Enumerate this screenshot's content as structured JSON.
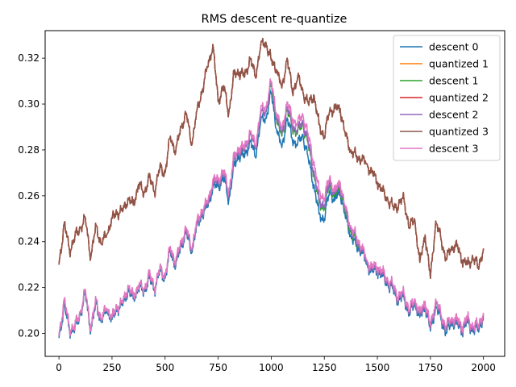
{
  "chart_data": {
    "type": "line",
    "title": "RMS descent re-quantize",
    "xlabel": "",
    "ylabel": "",
    "xlim": [
      -65,
      2100
    ],
    "ylim": [
      0.19,
      0.332
    ],
    "xticks": [
      0,
      250,
      500,
      750,
      1000,
      1250,
      1500,
      1750,
      2000
    ],
    "yticks": [
      0.2,
      0.22,
      0.24,
      0.26,
      0.28,
      0.3,
      0.32
    ],
    "ytick_labels": [
      "0.20",
      "0.22",
      "0.24",
      "0.26",
      "0.28",
      "0.30",
      "0.32"
    ],
    "legend_position": "top-right",
    "grid": false,
    "colors": {
      "descent 0": "#1f77b4",
      "quantized 1": "#ff7f0e",
      "descent 1": "#2ca02c",
      "quantized 2": "#d62728",
      "descent 2": "#9467bd",
      "quantized 3": "#8c564b",
      "descent 3": "#e377c2"
    },
    "series": [
      {
        "name": "descent 0",
        "x": [
          0,
          25,
          50,
          75,
          100,
          125,
          150,
          175,
          200,
          225,
          250,
          275,
          300,
          325,
          350,
          375,
          400,
          425,
          450,
          475,
          500,
          525,
          550,
          575,
          600,
          625,
          650,
          675,
          700,
          725,
          750,
          775,
          800,
          825,
          850,
          875,
          900,
          925,
          950,
          975,
          1000,
          1025,
          1050,
          1075,
          1100,
          1125,
          1150,
          1175,
          1200,
          1225,
          1250,
          1275,
          1300,
          1325,
          1350,
          1375,
          1400,
          1425,
          1450,
          1475,
          1500,
          1525,
          1550,
          1575,
          1600,
          1625,
          1650,
          1675,
          1700,
          1725,
          1750,
          1775,
          1800,
          1825,
          1850,
          1875,
          1900,
          1925,
          1950,
          1975,
          2000
        ],
        "y": [
          0.198,
          0.212,
          0.201,
          0.202,
          0.208,
          0.217,
          0.201,
          0.213,
          0.205,
          0.21,
          0.206,
          0.211,
          0.212,
          0.219,
          0.215,
          0.22,
          0.218,
          0.224,
          0.219,
          0.227,
          0.224,
          0.236,
          0.229,
          0.238,
          0.244,
          0.235,
          0.247,
          0.252,
          0.255,
          0.264,
          0.264,
          0.268,
          0.258,
          0.273,
          0.278,
          0.277,
          0.284,
          0.277,
          0.292,
          0.294,
          0.305,
          0.289,
          0.281,
          0.294,
          0.284,
          0.283,
          0.286,
          0.276,
          0.265,
          0.252,
          0.25,
          0.262,
          0.258,
          0.262,
          0.25,
          0.243,
          0.238,
          0.236,
          0.23,
          0.227,
          0.227,
          0.225,
          0.221,
          0.219,
          0.214,
          0.216,
          0.208,
          0.213,
          0.207,
          0.212,
          0.201,
          0.212,
          0.206,
          0.2,
          0.205,
          0.204,
          0.201,
          0.205,
          0.201,
          0.202,
          0.207
        ]
      },
      {
        "name": "quantized 1",
        "x": [
          0,
          25,
          50,
          75,
          100,
          125,
          150,
          175,
          200,
          225,
          250,
          275,
          300,
          325,
          350,
          375,
          400,
          425,
          450,
          475,
          500,
          525,
          550,
          575,
          600,
          625,
          650,
          675,
          700,
          725,
          750,
          775,
          800,
          825,
          850,
          875,
          900,
          925,
          950,
          975,
          1000,
          1025,
          1050,
          1075,
          1100,
          1125,
          1150,
          1175,
          1200,
          1225,
          1250,
          1275,
          1300,
          1325,
          1350,
          1375,
          1400,
          1425,
          1450,
          1475,
          1500,
          1525,
          1550,
          1575,
          1600,
          1625,
          1650,
          1675,
          1700,
          1725,
          1750,
          1775,
          1800,
          1825,
          1850,
          1875,
          1900,
          1925,
          1950,
          1975,
          2000
        ],
        "y": [
          0.23,
          0.248,
          0.236,
          0.242,
          0.246,
          0.25,
          0.233,
          0.247,
          0.239,
          0.243,
          0.25,
          0.253,
          0.253,
          0.259,
          0.256,
          0.265,
          0.261,
          0.268,
          0.262,
          0.272,
          0.27,
          0.286,
          0.279,
          0.29,
          0.296,
          0.282,
          0.297,
          0.306,
          0.316,
          0.326,
          0.301,
          0.308,
          0.296,
          0.313,
          0.314,
          0.312,
          0.32,
          0.312,
          0.325,
          0.327,
          0.319,
          0.315,
          0.307,
          0.32,
          0.305,
          0.312,
          0.305,
          0.3,
          0.304,
          0.291,
          0.286,
          0.297,
          0.298,
          0.298,
          0.286,
          0.28,
          0.277,
          0.276,
          0.274,
          0.27,
          0.266,
          0.262,
          0.258,
          0.255,
          0.256,
          0.259,
          0.246,
          0.25,
          0.231,
          0.243,
          0.224,
          0.249,
          0.241,
          0.232,
          0.238,
          0.238,
          0.232,
          0.23,
          0.233,
          0.229,
          0.237
        ]
      },
      {
        "name": "descent 1",
        "x": [
          0,
          25,
          50,
          75,
          100,
          125,
          150,
          175,
          200,
          225,
          250,
          275,
          300,
          325,
          350,
          375,
          400,
          425,
          450,
          475,
          500,
          525,
          550,
          575,
          600,
          625,
          650,
          675,
          700,
          725,
          750,
          775,
          800,
          825,
          850,
          875,
          900,
          925,
          950,
          975,
          1000,
          1025,
          1050,
          1075,
          1100,
          1125,
          1150,
          1175,
          1200,
          1225,
          1250,
          1275,
          1300,
          1325,
          1350,
          1375,
          1400,
          1425,
          1450,
          1475,
          1500,
          1525,
          1550,
          1575,
          1600,
          1625,
          1650,
          1675,
          1700,
          1725,
          1750,
          1775,
          1800,
          1825,
          1850,
          1875,
          1900,
          1925,
          1950,
          1975,
          2000
        ],
        "y": [
          0.199,
          0.214,
          0.202,
          0.203,
          0.209,
          0.218,
          0.202,
          0.214,
          0.206,
          0.211,
          0.207,
          0.212,
          0.213,
          0.22,
          0.216,
          0.221,
          0.219,
          0.225,
          0.22,
          0.228,
          0.225,
          0.237,
          0.23,
          0.239,
          0.245,
          0.236,
          0.248,
          0.253,
          0.256,
          0.266,
          0.266,
          0.27,
          0.261,
          0.276,
          0.28,
          0.28,
          0.287,
          0.281,
          0.295,
          0.297,
          0.308,
          0.293,
          0.286,
          0.298,
          0.289,
          0.288,
          0.291,
          0.282,
          0.27,
          0.257,
          0.255,
          0.265,
          0.26,
          0.264,
          0.252,
          0.245,
          0.24,
          0.237,
          0.231,
          0.228,
          0.228,
          0.226,
          0.222,
          0.22,
          0.215,
          0.217,
          0.209,
          0.214,
          0.208,
          0.213,
          0.202,
          0.214,
          0.207,
          0.202,
          0.206,
          0.205,
          0.202,
          0.206,
          0.202,
          0.203,
          0.208
        ]
      },
      {
        "name": "quantized 2",
        "x": [
          0,
          25,
          50,
          75,
          100,
          125,
          150,
          175,
          200,
          225,
          250,
          275,
          300,
          325,
          350,
          375,
          400,
          425,
          450,
          475,
          500,
          525,
          550,
          575,
          600,
          625,
          650,
          675,
          700,
          725,
          750,
          775,
          800,
          825,
          850,
          875,
          900,
          925,
          950,
          975,
          1000,
          1025,
          1050,
          1075,
          1100,
          1125,
          1150,
          1175,
          1200,
          1225,
          1250,
          1275,
          1300,
          1325,
          1350,
          1375,
          1400,
          1425,
          1450,
          1475,
          1500,
          1525,
          1550,
          1575,
          1600,
          1625,
          1650,
          1675,
          1700,
          1725,
          1750,
          1775,
          1800,
          1825,
          1850,
          1875,
          1900,
          1925,
          1950,
          1975,
          2000
        ],
        "y": [
          0.23,
          0.248,
          0.236,
          0.242,
          0.246,
          0.25,
          0.233,
          0.247,
          0.239,
          0.243,
          0.25,
          0.253,
          0.253,
          0.259,
          0.256,
          0.265,
          0.261,
          0.268,
          0.262,
          0.272,
          0.27,
          0.286,
          0.279,
          0.29,
          0.296,
          0.282,
          0.297,
          0.306,
          0.316,
          0.326,
          0.301,
          0.308,
          0.296,
          0.313,
          0.314,
          0.312,
          0.32,
          0.312,
          0.325,
          0.327,
          0.319,
          0.315,
          0.307,
          0.32,
          0.305,
          0.312,
          0.305,
          0.3,
          0.304,
          0.291,
          0.286,
          0.297,
          0.298,
          0.298,
          0.286,
          0.28,
          0.277,
          0.276,
          0.274,
          0.27,
          0.266,
          0.262,
          0.258,
          0.255,
          0.256,
          0.259,
          0.246,
          0.25,
          0.231,
          0.243,
          0.224,
          0.249,
          0.241,
          0.232,
          0.238,
          0.238,
          0.232,
          0.23,
          0.233,
          0.229,
          0.237
        ]
      },
      {
        "name": "descent 2",
        "x": [
          0,
          25,
          50,
          75,
          100,
          125,
          150,
          175,
          200,
          225,
          250,
          275,
          300,
          325,
          350,
          375,
          400,
          425,
          450,
          475,
          500,
          525,
          550,
          575,
          600,
          625,
          650,
          675,
          700,
          725,
          750,
          775,
          800,
          825,
          850,
          875,
          900,
          925,
          950,
          975,
          1000,
          1025,
          1050,
          1075,
          1100,
          1125,
          1150,
          1175,
          1200,
          1225,
          1250,
          1275,
          1300,
          1325,
          1350,
          1375,
          1400,
          1425,
          1450,
          1475,
          1500,
          1525,
          1550,
          1575,
          1600,
          1625,
          1650,
          1675,
          1700,
          1725,
          1750,
          1775,
          1800,
          1825,
          1850,
          1875,
          1900,
          1925,
          1950,
          1975,
          2000
        ],
        "y": [
          0.199,
          0.214,
          0.202,
          0.203,
          0.209,
          0.218,
          0.202,
          0.214,
          0.206,
          0.211,
          0.207,
          0.212,
          0.213,
          0.22,
          0.216,
          0.221,
          0.219,
          0.225,
          0.22,
          0.228,
          0.225,
          0.237,
          0.23,
          0.239,
          0.245,
          0.236,
          0.248,
          0.253,
          0.256,
          0.266,
          0.266,
          0.27,
          0.261,
          0.276,
          0.28,
          0.28,
          0.287,
          0.281,
          0.295,
          0.297,
          0.309,
          0.294,
          0.287,
          0.299,
          0.29,
          0.289,
          0.292,
          0.283,
          0.271,
          0.258,
          0.256,
          0.266,
          0.261,
          0.265,
          0.253,
          0.246,
          0.241,
          0.237,
          0.231,
          0.228,
          0.228,
          0.226,
          0.222,
          0.22,
          0.215,
          0.217,
          0.209,
          0.214,
          0.208,
          0.213,
          0.202,
          0.214,
          0.207,
          0.202,
          0.206,
          0.205,
          0.202,
          0.206,
          0.202,
          0.203,
          0.208
        ]
      },
      {
        "name": "quantized 3",
        "x": [
          0,
          25,
          50,
          75,
          100,
          125,
          150,
          175,
          200,
          225,
          250,
          275,
          300,
          325,
          350,
          375,
          400,
          425,
          450,
          475,
          500,
          525,
          550,
          575,
          600,
          625,
          650,
          675,
          700,
          725,
          750,
          775,
          800,
          825,
          850,
          875,
          900,
          925,
          950,
          975,
          1000,
          1025,
          1050,
          1075,
          1100,
          1125,
          1150,
          1175,
          1200,
          1225,
          1250,
          1275,
          1300,
          1325,
          1350,
          1375,
          1400,
          1425,
          1450,
          1475,
          1500,
          1525,
          1550,
          1575,
          1600,
          1625,
          1650,
          1675,
          1700,
          1725,
          1750,
          1775,
          1800,
          1825,
          1850,
          1875,
          1900,
          1925,
          1950,
          1975,
          2000
        ],
        "y": [
          0.23,
          0.248,
          0.236,
          0.242,
          0.246,
          0.25,
          0.233,
          0.247,
          0.239,
          0.243,
          0.25,
          0.253,
          0.253,
          0.259,
          0.256,
          0.265,
          0.261,
          0.268,
          0.262,
          0.272,
          0.27,
          0.286,
          0.279,
          0.29,
          0.296,
          0.282,
          0.297,
          0.306,
          0.316,
          0.326,
          0.301,
          0.308,
          0.296,
          0.313,
          0.314,
          0.312,
          0.32,
          0.312,
          0.325,
          0.327,
          0.319,
          0.315,
          0.307,
          0.32,
          0.305,
          0.312,
          0.305,
          0.3,
          0.304,
          0.291,
          0.286,
          0.297,
          0.298,
          0.298,
          0.286,
          0.28,
          0.277,
          0.276,
          0.274,
          0.27,
          0.266,
          0.262,
          0.258,
          0.255,
          0.256,
          0.259,
          0.246,
          0.25,
          0.231,
          0.243,
          0.224,
          0.249,
          0.241,
          0.232,
          0.238,
          0.238,
          0.232,
          0.23,
          0.233,
          0.229,
          0.237
        ]
      },
      {
        "name": "descent 3",
        "x": [
          0,
          25,
          50,
          75,
          100,
          125,
          150,
          175,
          200,
          225,
          250,
          275,
          300,
          325,
          350,
          375,
          400,
          425,
          450,
          475,
          500,
          525,
          550,
          575,
          600,
          625,
          650,
          675,
          700,
          725,
          750,
          775,
          800,
          825,
          850,
          875,
          900,
          925,
          950,
          975,
          1000,
          1025,
          1050,
          1075,
          1100,
          1125,
          1150,
          1175,
          1200,
          1225,
          1250,
          1275,
          1300,
          1325,
          1350,
          1375,
          1400,
          1425,
          1450,
          1475,
          1500,
          1525,
          1550,
          1575,
          1600,
          1625,
          1650,
          1675,
          1700,
          1725,
          1750,
          1775,
          1800,
          1825,
          1850,
          1875,
          1900,
          1925,
          1950,
          1975,
          2000
        ],
        "y": [
          0.199,
          0.215,
          0.202,
          0.203,
          0.209,
          0.219,
          0.202,
          0.215,
          0.206,
          0.211,
          0.207,
          0.212,
          0.213,
          0.221,
          0.216,
          0.221,
          0.219,
          0.226,
          0.22,
          0.228,
          0.225,
          0.238,
          0.231,
          0.24,
          0.246,
          0.237,
          0.249,
          0.254,
          0.257,
          0.267,
          0.267,
          0.271,
          0.262,
          0.277,
          0.281,
          0.281,
          0.288,
          0.282,
          0.297,
          0.299,
          0.31,
          0.296,
          0.289,
          0.301,
          0.293,
          0.292,
          0.295,
          0.286,
          0.275,
          0.262,
          0.259,
          0.268,
          0.262,
          0.266,
          0.254,
          0.247,
          0.242,
          0.238,
          0.232,
          0.229,
          0.229,
          0.227,
          0.223,
          0.221,
          0.216,
          0.218,
          0.21,
          0.215,
          0.209,
          0.214,
          0.203,
          0.215,
          0.208,
          0.203,
          0.207,
          0.206,
          0.203,
          0.207,
          0.203,
          0.204,
          0.209
        ]
      }
    ]
  }
}
